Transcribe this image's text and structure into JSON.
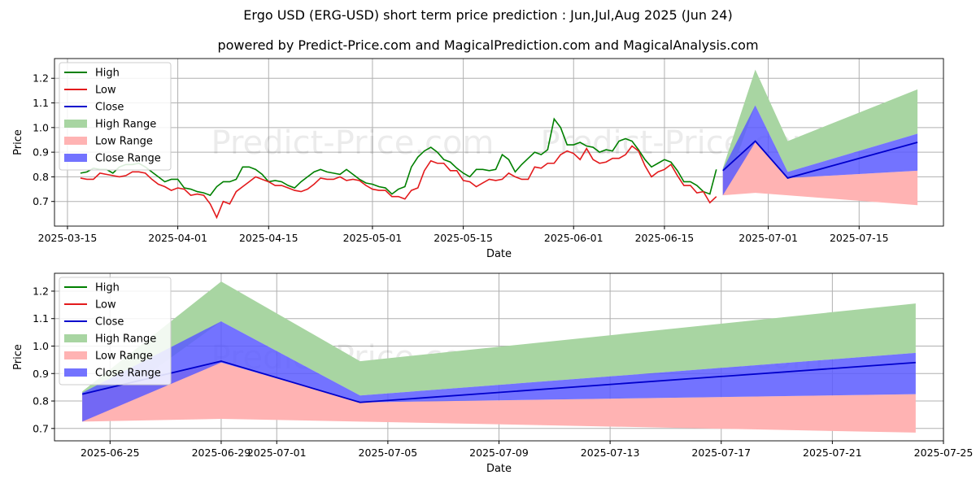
{
  "title": "Ergo USD (ERG-USD) short term price prediction : Jun,Jul,Aug 2025 (Jun 24)",
  "subtitle": "powered by Predict-Price.com and MagicalPrediction.com and MagicalAnalysis.com",
  "watermark": "Predict-Price.com",
  "colors": {
    "high": "#008000",
    "low": "#e31a1c",
    "close": "#0000cc",
    "high_range": "#a8d5a2",
    "low_range": "#ffb3b3",
    "close_range": "#5b5bff"
  },
  "chart_data": [
    {
      "type": "line",
      "xlabel": "Date",
      "ylabel": "Price",
      "xlim": [
        "2025-03-13",
        "2025-07-28"
      ],
      "ylim": [
        0.6,
        1.28
      ],
      "xticks": [
        "2025-03-15",
        "2025-04-01",
        "2025-04-15",
        "2025-05-01",
        "2025-05-15",
        "2025-06-01",
        "2025-06-15",
        "2025-07-01",
        "2025-07-15"
      ],
      "yticks": [
        0.7,
        0.8,
        0.9,
        1.0,
        1.1,
        1.2
      ],
      "grid": true,
      "legend": [
        "High",
        "Low",
        "Close",
        "High Range",
        "Low Range",
        "Close Range"
      ],
      "legend_position": "top-left",
      "history_start": "2025-03-17",
      "high": [
        0.815,
        0.82,
        0.835,
        0.83,
        0.83,
        0.815,
        0.84,
        0.85,
        0.85,
        0.855,
        0.84,
        0.82,
        0.8,
        0.78,
        0.79,
        0.79,
        0.755,
        0.75,
        0.74,
        0.735,
        0.725,
        0.76,
        0.78,
        0.78,
        0.79,
        0.84,
        0.84,
        0.83,
        0.81,
        0.78,
        0.785,
        0.78,
        0.765,
        0.755,
        0.78,
        0.8,
        0.82,
        0.83,
        0.82,
        0.815,
        0.81,
        0.83,
        0.81,
        0.79,
        0.775,
        0.77,
        0.76,
        0.755,
        0.73,
        0.75,
        0.76,
        0.84,
        0.88,
        0.905,
        0.92,
        0.9,
        0.87,
        0.86,
        0.835,
        0.815,
        0.8,
        0.83,
        0.83,
        0.825,
        0.83,
        0.89,
        0.87,
        0.82,
        0.85,
        0.875,
        0.9,
        0.89,
        0.91,
        1.035,
        1.0,
        0.93,
        0.93,
        0.94,
        0.925,
        0.92,
        0.9,
        0.91,
        0.905,
        0.945,
        0.955,
        0.945,
        0.91,
        0.87,
        0.84,
        0.855,
        0.87,
        0.86,
        0.825,
        0.78,
        0.78,
        0.765,
        0.74,
        0.73,
        0.83
      ],
      "low": [
        0.795,
        0.79,
        0.79,
        0.815,
        0.81,
        0.805,
        0.8,
        0.805,
        0.82,
        0.82,
        0.815,
        0.79,
        0.77,
        0.76,
        0.745,
        0.755,
        0.75,
        0.725,
        0.73,
        0.725,
        0.69,
        0.635,
        0.7,
        0.69,
        0.74,
        0.76,
        0.78,
        0.8,
        0.79,
        0.78,
        0.765,
        0.765,
        0.755,
        0.745,
        0.74,
        0.75,
        0.77,
        0.795,
        0.79,
        0.79,
        0.8,
        0.785,
        0.79,
        0.785,
        0.765,
        0.75,
        0.745,
        0.745,
        0.72,
        0.72,
        0.71,
        0.745,
        0.755,
        0.825,
        0.865,
        0.855,
        0.855,
        0.825,
        0.825,
        0.785,
        0.78,
        0.76,
        0.775,
        0.79,
        0.785,
        0.79,
        0.815,
        0.8,
        0.79,
        0.79,
        0.84,
        0.835,
        0.855,
        0.855,
        0.89,
        0.905,
        0.895,
        0.87,
        0.915,
        0.87,
        0.855,
        0.86,
        0.875,
        0.875,
        0.89,
        0.925,
        0.905,
        0.845,
        0.8,
        0.82,
        0.83,
        0.85,
        0.805,
        0.765,
        0.765,
        0.735,
        0.74,
        0.695,
        0.72
      ],
      "forecast": {
        "dates": [
          "2025-06-24",
          "2025-06-29",
          "2025-07-04",
          "2025-07-24"
        ],
        "high_range": {
          "upper": [
            0.835,
            1.235,
            0.945,
            1.155
          ],
          "lower": [
            0.725,
            1.09,
            0.82,
            0.975
          ]
        },
        "low_range": {
          "upper": [
            0.825,
            0.94,
            0.795,
            0.825
          ],
          "lower": [
            0.725,
            0.735,
            0.725,
            0.685
          ]
        },
        "close_range": {
          "upper": [
            0.83,
            1.09,
            0.82,
            0.975
          ],
          "lower": [
            0.725,
            0.94,
            0.795,
            0.825
          ]
        },
        "close": [
          0.825,
          0.945,
          0.795,
          0.94
        ]
      }
    },
    {
      "type": "area",
      "xlabel": "Date",
      "ylabel": "Price",
      "xlim": [
        "2025-06-23",
        "2025-07-25"
      ],
      "ylim": [
        0.655,
        1.265
      ],
      "xticks": [
        "2025-06-25",
        "2025-06-29",
        "2025-07-01",
        "2025-07-05",
        "2025-07-09",
        "2025-07-13",
        "2025-07-17",
        "2025-07-21",
        "2025-07-25"
      ],
      "yticks": [
        0.7,
        0.8,
        0.9,
        1.0,
        1.1,
        1.2
      ],
      "grid": true,
      "legend": [
        "High",
        "Low",
        "Close",
        "High Range",
        "Low Range",
        "Close Range"
      ],
      "legend_position": "top-left",
      "forecast": {
        "dates": [
          "2025-06-24",
          "2025-06-29",
          "2025-07-04",
          "2025-07-24"
        ],
        "high_range": {
          "upper": [
            0.835,
            1.235,
            0.945,
            1.155
          ],
          "lower": [
            0.725,
            1.09,
            0.82,
            0.975
          ]
        },
        "low_range": {
          "upper": [
            0.825,
            0.94,
            0.795,
            0.825
          ],
          "lower": [
            0.725,
            0.735,
            0.725,
            0.685
          ]
        },
        "close_range": {
          "upper": [
            0.83,
            1.09,
            0.82,
            0.975
          ],
          "lower": [
            0.725,
            0.94,
            0.795,
            0.825
          ]
        },
        "close": [
          0.825,
          0.945,
          0.795,
          0.94
        ]
      }
    }
  ]
}
